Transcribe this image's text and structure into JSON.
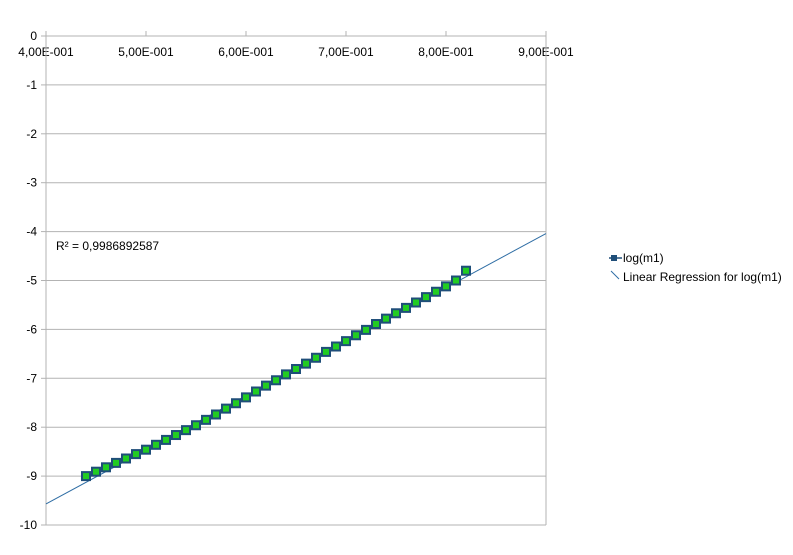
{
  "chart_data": {
    "type": "scatter",
    "x_ticks": [
      "4,00E-001",
      "5,00E-001",
      "6,00E-001",
      "7,00E-001",
      "8,00E-001",
      "9,00E-001"
    ],
    "y_ticks": [
      "0",
      "-1",
      "-2",
      "-3",
      "-4",
      "-5",
      "-6",
      "-7",
      "-8",
      "-9",
      "-10"
    ],
    "xlim": [
      0.4,
      0.9
    ],
    "ylim": [
      -10,
      0
    ],
    "grid": "horizontal",
    "x_axis_position": "top",
    "legend_position": "right",
    "series": [
      {
        "name": "log(m1)",
        "marker": "square",
        "marker_fill": "#22cc22",
        "marker_edge": "#1f4e79",
        "x": [
          0.44,
          0.45,
          0.46,
          0.47,
          0.48,
          0.49,
          0.5,
          0.51,
          0.52,
          0.53,
          0.54,
          0.55,
          0.56,
          0.57,
          0.58,
          0.59,
          0.6,
          0.61,
          0.62,
          0.63,
          0.64,
          0.65,
          0.66,
          0.67,
          0.68,
          0.69,
          0.7,
          0.71,
          0.72,
          0.73,
          0.74,
          0.75,
          0.76,
          0.77,
          0.78,
          0.79,
          0.8,
          0.81,
          0.82
        ],
        "y": [
          -9.0,
          -8.91,
          -8.82,
          -8.73,
          -8.64,
          -8.55,
          -8.46,
          -8.36,
          -8.26,
          -8.16,
          -8.06,
          -7.96,
          -7.85,
          -7.74,
          -7.62,
          -7.51,
          -7.39,
          -7.27,
          -7.15,
          -7.04,
          -6.92,
          -6.81,
          -6.7,
          -6.58,
          -6.46,
          -6.35,
          -6.24,
          -6.12,
          -6.01,
          -5.89,
          -5.78,
          -5.67,
          -5.56,
          -5.45,
          -5.34,
          -5.23,
          -5.12,
          -5.0,
          -4.8
        ]
      },
      {
        "name": "Linear Regression for log(m1)",
        "type": "line",
        "color": "#2e6da4",
        "x": [
          0.4,
          0.9
        ],
        "y": [
          -9.57,
          -4.04
        ]
      }
    ],
    "annotations": [
      "R² = 0,9986892587"
    ]
  }
}
